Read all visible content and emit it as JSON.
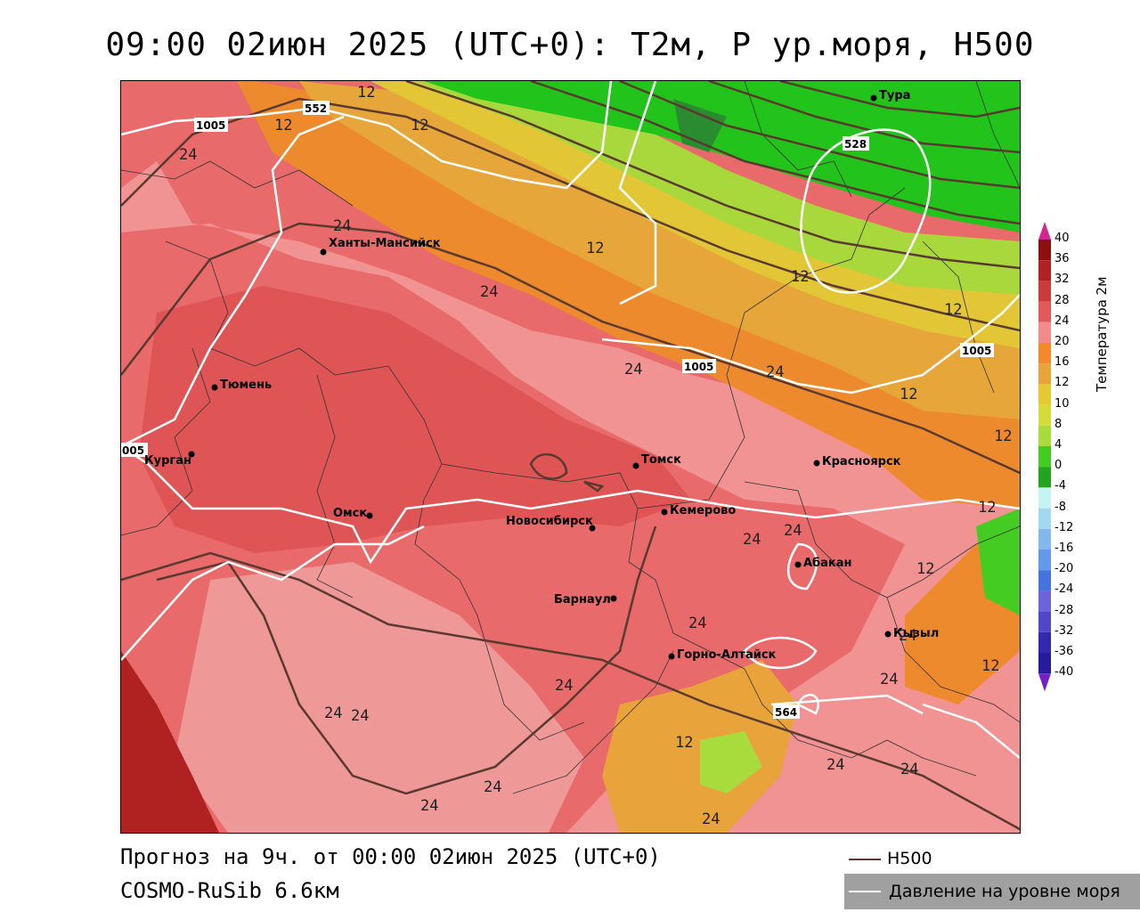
{
  "title": "09:00 02июн 2025 (UTC+0): T2м, P ур.моря, H500",
  "footer": {
    "forecast": "Прогноз на 9ч. от 00:00 02июн 2025 (UTC+0)",
    "model": "COSMO-RuSib 6.6км"
  },
  "legend": {
    "h500": "H500",
    "pressure": "Давление на уровне моря"
  },
  "colorbar": {
    "title": "Температура 2м",
    "levels": [
      "40",
      "36",
      "32",
      "28",
      "24",
      "20",
      "16",
      "12",
      "10",
      "8",
      "4",
      "0",
      "-4",
      "-8",
      "-12",
      "-16",
      "-20",
      "-24",
      "-28",
      "-32",
      "-36",
      "-40"
    ],
    "colors": [
      "#8c1010",
      "#b02222",
      "#cc3a3a",
      "#e05a5a",
      "#f28c8c",
      "#f28a2a",
      "#e8a43a",
      "#e6c832",
      "#d4dc3c",
      "#a8dc3c",
      "#44cc22",
      "#22a41c",
      "#c4f4f4",
      "#a4d8f0",
      "#84b8ec",
      "#6498e8",
      "#4474dc",
      "#6c64d8",
      "#5048c8",
      "#3428b0",
      "#241c9c",
      "#7420c8"
    ]
  },
  "cities": [
    {
      "name": "Тура"
    },
    {
      "name": "Ханты-Мансийск"
    },
    {
      "name": "Тюмень"
    },
    {
      "name": "Курган"
    },
    {
      "name": "Омск"
    },
    {
      "name": "Новосибирск"
    },
    {
      "name": "Томск"
    },
    {
      "name": "Кемерово"
    },
    {
      "name": "Красноярск"
    },
    {
      "name": "Абакан"
    },
    {
      "name": "Барнаул"
    },
    {
      "name": "Горно-Алтайск"
    },
    {
      "name": "Кызыл"
    }
  ],
  "pressure_labels": [
    "1005",
    "1005",
    "1005",
    "005"
  ],
  "h500_labels": [
    "552",
    "528",
    "564"
  ],
  "temp_labels": [
    "12",
    "12",
    "12",
    "12",
    "12",
    "12",
    "12",
    "12",
    "12",
    "12",
    "12",
    "12",
    "24",
    "24",
    "24",
    "24",
    "24",
    "24",
    "24",
    "24",
    "24",
    "24",
    "24",
    "24",
    "24",
    "24",
    "24",
    "24",
    "24",
    "24"
  ]
}
